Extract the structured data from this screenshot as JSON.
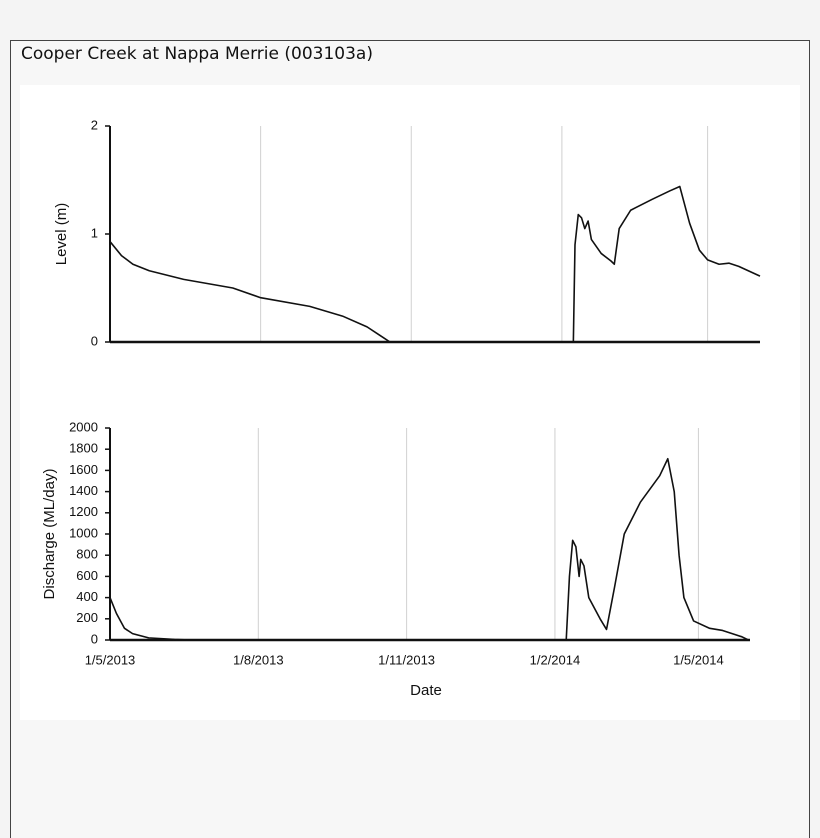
{
  "title": "Cooper Creek at Nappa Merrie (003103a)",
  "chart_data": [
    {
      "type": "line",
      "y_label": "Level (m)",
      "color": "#111111",
      "grid": true,
      "x": [
        "2013-05-01",
        "2013-05-08",
        "2013-05-15",
        "2013-05-25",
        "2013-06-15",
        "2013-07-15",
        "2013-08-01",
        "2013-08-31",
        "2013-09-20",
        "2013-10-05",
        "2013-10-15",
        "2013-10-19",
        "2014-02-08",
        "2014-02-09",
        "2014-02-11",
        "2014-02-13",
        "2014-02-15",
        "2014-02-17",
        "2014-02-19",
        "2014-02-25",
        "2014-03-03",
        "2014-03-05",
        "2014-03-08",
        "2014-03-15",
        "2014-03-28",
        "2014-04-08",
        "2014-04-14",
        "2014-04-20",
        "2014-04-26",
        "2014-05-01",
        "2014-05-08",
        "2014-05-14",
        "2014-05-20",
        "2014-06-02"
      ],
      "values": [
        0.93,
        0.8,
        0.72,
        0.66,
        0.58,
        0.5,
        0.41,
        0.33,
        0.24,
        0.14,
        0.04,
        0,
        0,
        0.9,
        1.18,
        1.15,
        1.05,
        1.12,
        0.95,
        0.82,
        0.75,
        0.72,
        1.05,
        1.22,
        1.32,
        1.4,
        1.44,
        1.1,
        0.85,
        0.76,
        0.72,
        0.73,
        0.7,
        0.61
      ],
      "xlim": [
        "2013-05-01",
        "2014-06-02"
      ],
      "xticks": [
        "2013-05-01",
        "2013-08-01",
        "2013-11-01",
        "2014-02-01",
        "2014-05-01"
      ],
      "ylim": [
        0,
        2
      ],
      "yticks": [
        0,
        1,
        2
      ]
    },
    {
      "type": "line",
      "x_label": "Date",
      "y_label": "Discharge (ML/day)",
      "color": "#111111",
      "grid": true,
      "x": [
        "2013-05-01",
        "2013-05-05",
        "2013-05-10",
        "2013-05-15",
        "2013-05-25",
        "2013-06-10",
        "2013-06-20",
        "2014-02-08",
        "2014-02-10",
        "2014-02-12",
        "2014-02-14",
        "2014-02-16",
        "2014-02-17",
        "2014-02-19",
        "2014-02-22",
        "2014-03-01",
        "2014-03-05",
        "2014-03-10",
        "2014-03-16",
        "2014-03-26",
        "2014-04-07",
        "2014-04-12",
        "2014-04-16",
        "2014-04-19",
        "2014-04-22",
        "2014-04-28",
        "2014-05-08",
        "2014-05-16",
        "2014-05-28",
        "2014-06-01"
      ],
      "values": [
        400,
        250,
        110,
        60,
        20,
        5,
        0,
        0,
        600,
        940,
        880,
        600,
        760,
        700,
        400,
        200,
        100,
        500,
        1000,
        1300,
        1550,
        1710,
        1400,
        800,
        400,
        180,
        110,
        90,
        30,
        0
      ],
      "xlim": [
        "2013-05-01",
        "2014-06-02"
      ],
      "xticks": [
        {
          "value": "2013-05-01",
          "label": "1/5/2013"
        },
        {
          "value": "2013-08-01",
          "label": "1/8/2013"
        },
        {
          "value": "2013-11-01",
          "label": "1/11/2013"
        },
        {
          "value": "2014-02-01",
          "label": "1/2/2014"
        },
        {
          "value": "2014-05-01",
          "label": "1/5/2014"
        }
      ],
      "ylim": [
        0,
        2000
      ],
      "yticks": [
        0,
        200,
        400,
        600,
        800,
        1000,
        1200,
        1400,
        1600,
        1800,
        2000
      ]
    }
  ]
}
